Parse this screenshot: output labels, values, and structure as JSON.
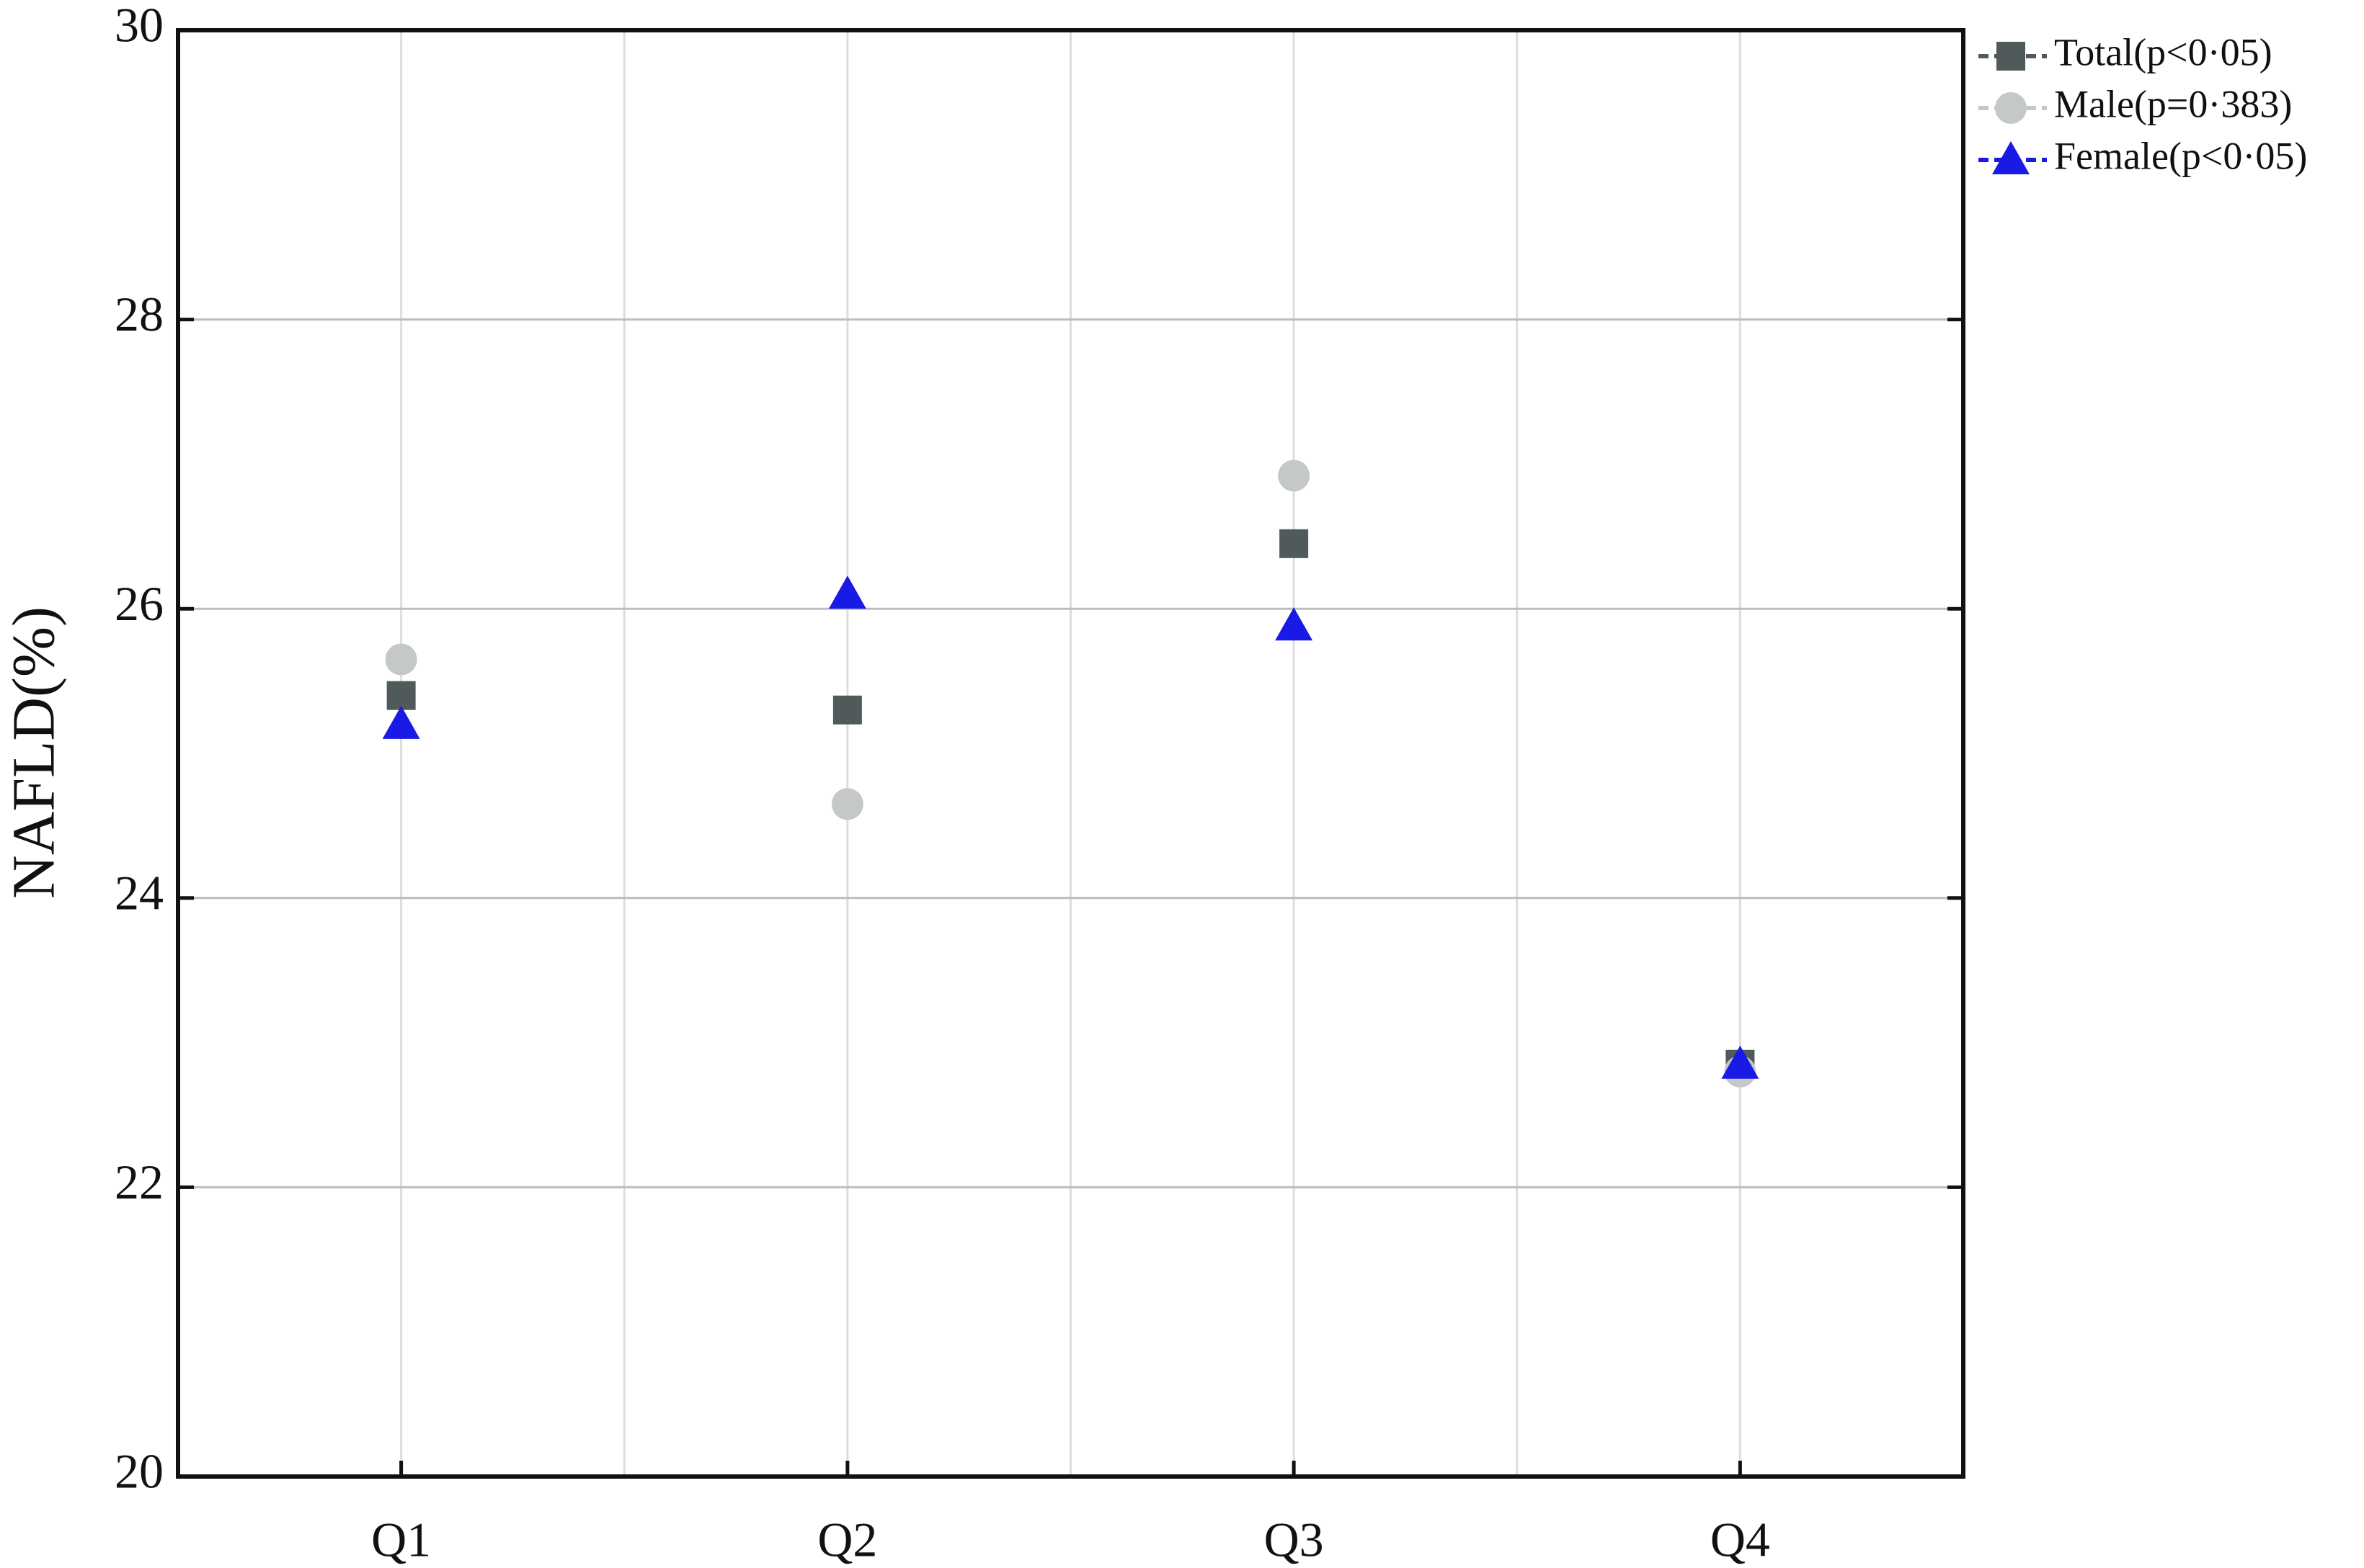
{
  "chart_data": {
    "type": "line",
    "ylabel": "NAFLD(%)",
    "categories": [
      "Q1",
      "Q2",
      "Q3",
      "Q4"
    ],
    "series": [
      {
        "name": "Total(p<0·05)",
        "color": "#505a5a",
        "marker": "square",
        "values": [
          25.4,
          25.3,
          26.45,
          22.85
        ]
      },
      {
        "name": "Male(p=0·383)",
        "color": "#c4c8c6",
        "marker": "circle",
        "values": [
          25.65,
          24.65,
          26.92,
          22.8
        ]
      },
      {
        "name": "Female(p<0·05)",
        "color": "#1a1ae6",
        "marker": "triangle",
        "values": [
          25.2,
          26.1,
          25.88,
          22.85
        ]
      }
    ],
    "ylim": [
      20,
      30
    ],
    "yticks": [
      20,
      22,
      24,
      26,
      28,
      30
    ],
    "grid": true,
    "legend": "upper right"
  }
}
